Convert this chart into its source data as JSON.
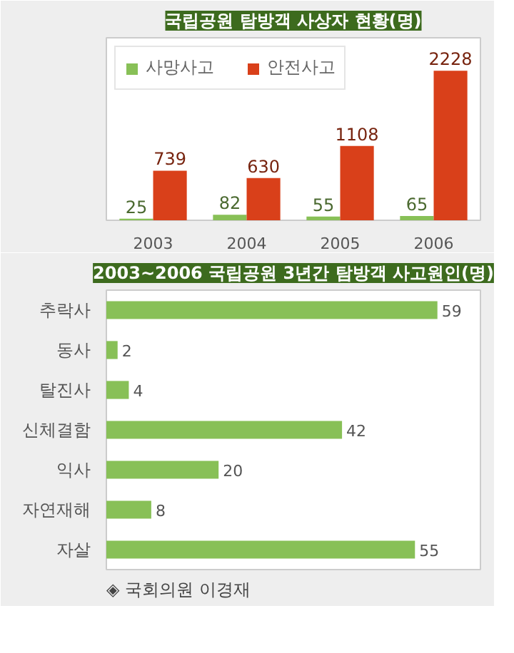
{
  "chart_data": [
    {
      "type": "bar",
      "title": "국립공원 탐방객 사상자 현황(명)",
      "categories": [
        "2003",
        "2004",
        "2005",
        "2006"
      ],
      "series": [
        {
          "name": "사망사고",
          "color": "#88c057",
          "values": [
            25,
            82,
            55,
            65
          ]
        },
        {
          "name": "안전사고",
          "color": "#d9401a",
          "values": [
            739,
            630,
            1108,
            2228
          ]
        }
      ],
      "data_labels": true,
      "legend": "top left",
      "tick_labels": "x"
    },
    {
      "type": "bar",
      "orientation": "horizontal",
      "title": "2003~2006 국립공원 3년간 탐방객 사고원인(명)",
      "categories": [
        "추락사",
        "동사",
        "탈진사",
        "신체결함",
        "익사",
        "자연재해",
        "자살"
      ],
      "values": [
        59,
        2,
        4,
        42,
        20,
        8,
        55
      ],
      "color": "#88c057",
      "data_labels": true,
      "tick_labels": "y",
      "annotations": [
        "◈ 국회의원 이경재"
      ]
    }
  ]
}
